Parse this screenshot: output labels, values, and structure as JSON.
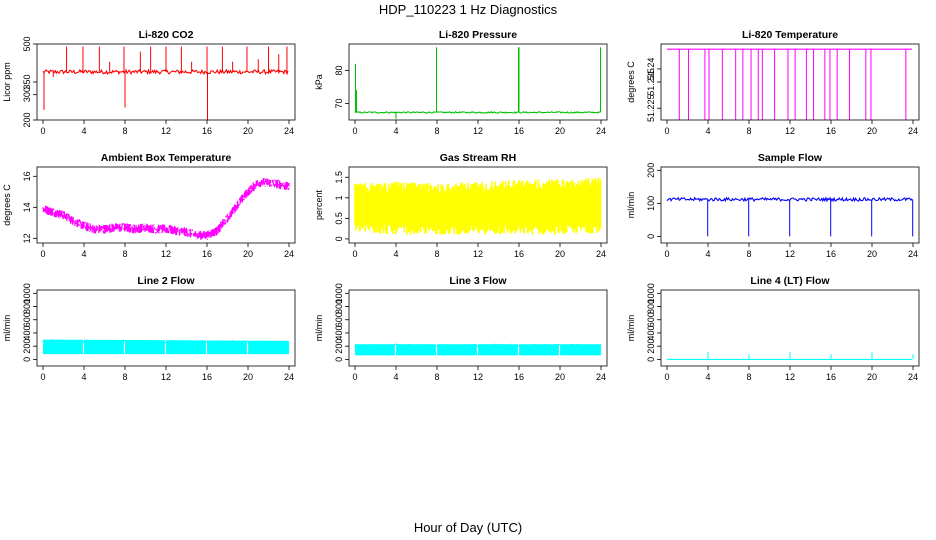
{
  "figure": {
    "title": "HDP_110223  1 Hz Diagnostics",
    "xlabel": "Hour of Day (UTC)"
  },
  "chart_data": [
    {
      "type": "line",
      "title": "Li-820 CO2",
      "ylabel": "Licor ppm",
      "color": "#ff0000",
      "xlim": [
        0,
        24
      ],
      "ylim": [
        200,
        500
      ],
      "xticks": [
        0,
        4,
        8,
        12,
        16,
        20,
        24
      ],
      "yticks": [
        200,
        300,
        350,
        500
      ],
      "baseline": 390,
      "noise": 8,
      "spikes": [
        {
          "x": 0.1,
          "y": 240
        },
        {
          "x": 1.0,
          "y": 370
        },
        {
          "x": 2.3,
          "y": 490
        },
        {
          "x": 3.9,
          "y": 490
        },
        {
          "x": 5.5,
          "y": 490
        },
        {
          "x": 6.5,
          "y": 430
        },
        {
          "x": 7.9,
          "y": 490
        },
        {
          "x": 8.0,
          "y": 250
        },
        {
          "x": 9.5,
          "y": 470
        },
        {
          "x": 10.5,
          "y": 490
        },
        {
          "x": 12.0,
          "y": 490
        },
        {
          "x": 13.5,
          "y": 490
        },
        {
          "x": 14.5,
          "y": 430
        },
        {
          "x": 16.0,
          "y": 490
        },
        {
          "x": 16.05,
          "y": 200
        },
        {
          "x": 17.5,
          "y": 490
        },
        {
          "x": 18.5,
          "y": 430
        },
        {
          "x": 19.9,
          "y": 490
        },
        {
          "x": 21.0,
          "y": 440
        },
        {
          "x": 22.0,
          "y": 490
        },
        {
          "x": 23.0,
          "y": 460
        },
        {
          "x": 23.8,
          "y": 490
        }
      ]
    },
    {
      "type": "line",
      "title": "Li-820 Pressure",
      "ylabel": "kPa",
      "color": "#00c000",
      "xlim": [
        0,
        24
      ],
      "ylim": [
        65,
        88
      ],
      "xticks": [
        0,
        4,
        8,
        12,
        16,
        20,
        24
      ],
      "yticks": [
        70,
        80
      ],
      "baseline": 67.3,
      "noise": 0.2,
      "spikes": [
        {
          "x": 0.05,
          "y": 82
        },
        {
          "x": 0.15,
          "y": 74
        },
        {
          "x": 4.0,
          "y": 65.3
        },
        {
          "x": 7.95,
          "y": 87
        },
        {
          "x": 15.95,
          "y": 87
        },
        {
          "x": 16.0,
          "y": 87
        },
        {
          "x": 23.95,
          "y": 87
        }
      ]
    },
    {
      "type": "line",
      "title": "Li-820 Temperature",
      "ylabel": "degrees C",
      "color": "#ff00ff",
      "xlim": [
        0,
        24
      ],
      "ylim": [
        51.2205,
        51.2495
      ],
      "xticks": [
        0,
        4,
        8,
        12,
        16,
        20,
        24
      ],
      "yticks": [
        51.225,
        51.235,
        51.24
      ],
      "baseline": 51.2475,
      "spikes": [
        {
          "x": 1.2,
          "y": 51.2205
        },
        {
          "x": 2.1,
          "y": 51.2205
        },
        {
          "x": 3.7,
          "y": 51.2205
        },
        {
          "x": 4.1,
          "y": 51.2205
        },
        {
          "x": 5.4,
          "y": 51.2205
        },
        {
          "x": 6.7,
          "y": 51.2205
        },
        {
          "x": 7.4,
          "y": 51.2205
        },
        {
          "x": 8.2,
          "y": 51.2205
        },
        {
          "x": 8.9,
          "y": 51.2205
        },
        {
          "x": 9.3,
          "y": 51.2205
        },
        {
          "x": 10.5,
          "y": 51.2205
        },
        {
          "x": 11.8,
          "y": 51.2205
        },
        {
          "x": 12.5,
          "y": 51.2205
        },
        {
          "x": 13.6,
          "y": 51.2205
        },
        {
          "x": 14.3,
          "y": 51.2205
        },
        {
          "x": 15.4,
          "y": 51.2205
        },
        {
          "x": 15.9,
          "y": 51.2205
        },
        {
          "x": 16.6,
          "y": 51.2205
        },
        {
          "x": 17.8,
          "y": 51.2205
        },
        {
          "x": 19.4,
          "y": 51.2205
        },
        {
          "x": 19.9,
          "y": 51.2205
        },
        {
          "x": 23.3,
          "y": 51.2205
        }
      ]
    },
    {
      "type": "line",
      "title": "Ambient Box Temperature",
      "ylabel": "degrees C",
      "color": "#ff00ff",
      "xlim": [
        0,
        24
      ],
      "ylim": [
        11.7,
        16.6
      ],
      "xticks": [
        0,
        4,
        8,
        12,
        16,
        20,
        24
      ],
      "yticks": [
        12,
        14,
        16
      ],
      "noise": 0.3,
      "x": [
        0,
        1,
        2,
        3,
        4,
        5,
        6,
        7,
        8,
        9,
        10,
        11,
        12,
        13,
        14,
        15,
        16,
        17,
        18,
        19,
        20,
        21,
        22,
        23,
        24
      ],
      "values": [
        13.9,
        13.7,
        13.5,
        13.1,
        12.8,
        12.6,
        12.6,
        12.7,
        12.7,
        12.6,
        12.7,
        12.6,
        12.6,
        12.5,
        12.4,
        12.2,
        12.2,
        12.5,
        13.3,
        14.2,
        15.0,
        15.6,
        15.6,
        15.5,
        15.3
      ]
    },
    {
      "type": "area",
      "title": "Gas Stream RH",
      "ylabel": "percent",
      "color": "#ffff00",
      "xlim": [
        0,
        24
      ],
      "ylim": [
        -0.1,
        1.75
      ],
      "xticks": [
        0,
        4,
        8,
        12,
        16,
        20,
        24
      ],
      "yticks": [
        0.0,
        0.5,
        1.0,
        1.5
      ],
      "x": [
        0,
        4,
        8,
        12,
        16,
        20,
        24
      ],
      "upper": [
        1.35,
        1.4,
        1.35,
        1.4,
        1.45,
        1.45,
        1.5
      ],
      "lower": [
        0.15,
        0.1,
        0.1,
        0.1,
        0.1,
        0.1,
        0.15
      ]
    },
    {
      "type": "line",
      "title": "Sample Flow",
      "ylabel": "ml/min",
      "color": "#0000ff",
      "xlim": [
        0,
        24
      ],
      "ylim": [
        -20,
        210
      ],
      "xticks": [
        0,
        4,
        8,
        12,
        16,
        20,
        24
      ],
      "yticks": [
        0,
        100,
        200
      ],
      "baseline": 112,
      "noise": 5,
      "spikes": [
        {
          "x": 3.97,
          "y": 0
        },
        {
          "x": 7.97,
          "y": 0
        },
        {
          "x": 11.97,
          "y": 0
        },
        {
          "x": 15.97,
          "y": 0
        },
        {
          "x": 19.97,
          "y": 0
        },
        {
          "x": 23.97,
          "y": 0
        }
      ]
    },
    {
      "type": "area",
      "title": "Line 2 Flow",
      "ylabel": "ml/min",
      "color": "#00ffff",
      "xlim": [
        0,
        24
      ],
      "ylim": [
        -100,
        1050
      ],
      "xticks": [
        0,
        4,
        8,
        12,
        16,
        20,
        24
      ],
      "yticks": [
        0,
        200,
        400,
        600,
        800,
        1000
      ],
      "x": [
        0,
        24
      ],
      "upper": [
        300,
        280
      ],
      "lower": [
        80,
        80
      ],
      "gaps": [
        3.95,
        7.95,
        11.95,
        15.95,
        19.95
      ]
    },
    {
      "type": "area",
      "title": "Line 3 Flow",
      "ylabel": "ml/min",
      "color": "#00ffff",
      "xlim": [
        0,
        24
      ],
      "ylim": [
        -100,
        1050
      ],
      "xticks": [
        0,
        4,
        8,
        12,
        16,
        20,
        24
      ],
      "yticks": [
        0,
        200,
        400,
        600,
        800,
        1000
      ],
      "x": [
        0,
        24
      ],
      "upper": [
        230,
        230
      ],
      "lower": [
        60,
        60
      ],
      "gaps": [
        3.95,
        7.95,
        11.95,
        15.95,
        19.95
      ]
    },
    {
      "type": "line",
      "title": "Line 4 (LT) Flow",
      "ylabel": "ml/min",
      "color": "#00ffff",
      "xlim": [
        0,
        24
      ],
      "ylim": [
        -100,
        1050
      ],
      "xticks": [
        0,
        4,
        8,
        12,
        16,
        20,
        24
      ],
      "yticks": [
        0,
        200,
        400,
        600,
        800,
        1000
      ],
      "baseline": 0,
      "noise": 0,
      "spikes": [
        {
          "x": 4.0,
          "y": 110
        },
        {
          "x": 8.0,
          "y": 80
        },
        {
          "x": 12.0,
          "y": 110
        },
        {
          "x": 16.0,
          "y": 80
        },
        {
          "x": 20.0,
          "y": 110
        },
        {
          "x": 24.0,
          "y": 80
        }
      ]
    }
  ]
}
